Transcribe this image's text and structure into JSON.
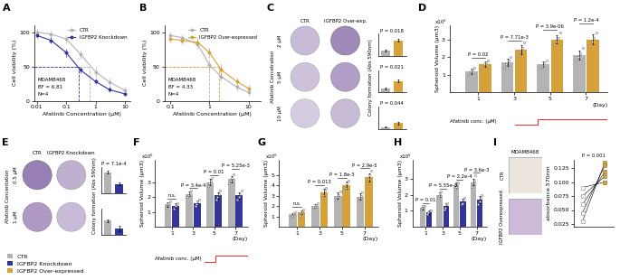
{
  "chart_data": [
    {
      "panel": "A",
      "type": "line",
      "log": "x",
      "xlabel": "Afatinib Concentration (μM)",
      "ylabel": "Cell viability (%)",
      "x": [
        0.01,
        0.03,
        0.1,
        0.3,
        1,
        3,
        10
      ],
      "xlim": [
        0.008,
        15
      ],
      "xticks": [
        0.01,
        0.1,
        1,
        10
      ],
      "ylim": [
        0,
        110
      ],
      "yticks": [
        0,
        50,
        100
      ],
      "reference_y": 50,
      "legend": "upper right",
      "annotations": [
        "MDAMB468",
        "BF = 6.81",
        "N=4"
      ],
      "series": [
        {
          "name": "CTR",
          "color": "#b3b3b3",
          "values": [
            100,
            97,
            90,
            68,
            42,
            27,
            15
          ],
          "errors": [
            6,
            5,
            6,
            7,
            8,
            6,
            5
          ],
          "ic50": 0.6
        },
        {
          "name": "IGFBP2 Knockdown",
          "color": "#34359b",
          "values": [
            95,
            88,
            70,
            45,
            28,
            16,
            10
          ],
          "errors": [
            4,
            5,
            6,
            5,
            4,
            4,
            3
          ],
          "ic50": 0.27
        }
      ]
    },
    {
      "panel": "B",
      "type": "line",
      "log": "x",
      "xlabel": "Afatinib Concentration (μM)",
      "ylabel": "Cell viability (%)",
      "x": [
        0.1,
        0.2,
        0.5,
        1,
        2,
        5,
        10
      ],
      "xlim": [
        0.07,
        20
      ],
      "xticks": [
        0.1,
        1,
        10
      ],
      "ylim": [
        0,
        110
      ],
      "yticks": [
        0,
        50,
        100
      ],
      "reference_y": 50,
      "legend": "upper right",
      "annotations": [
        "MDAMB468",
        "BF = 4.33",
        "N=4"
      ],
      "series": [
        {
          "name": "CTR",
          "color": "#b3b3b3",
          "values": [
            95,
            92,
            82,
            52,
            35,
            20,
            12
          ],
          "errors": [
            5,
            5,
            6,
            8,
            7,
            6,
            5
          ],
          "ic50": 1.0
        },
        {
          "name": "IGFBP2 Over-expressed",
          "color": "#d4a13b",
          "values": [
            90,
            88,
            85,
            70,
            45,
            28,
            18
          ],
          "errors": [
            5,
            6,
            6,
            7,
            8,
            6,
            5
          ],
          "ic50": 1.8
        }
      ]
    },
    {
      "panel": "C",
      "type": "colony",
      "column_labels": [
        "CTR",
        "IGFBP2 Over-exp."
      ],
      "row_title": "Afatinib Concetration",
      "ylabel": "Colony formation (Abs 590nm)",
      "colors": [
        "#b3b3b3",
        "#d4a13b"
      ],
      "ylim": [
        0,
        1.2
      ],
      "tick_labels": false,
      "rows": [
        {
          "label": "2 μM",
          "values": [
            0.3,
            0.85
          ],
          "errors": [
            0.04,
            0.08
          ],
          "p_value": "P = 0.018"
        },
        {
          "label": "5 μM",
          "values": [
            0.22,
            0.62
          ],
          "errors": [
            0.04,
            0.08
          ],
          "p_value": "P = 0.021"
        },
        {
          "label": "10 μM",
          "values": [
            0.1,
            0.3
          ],
          "errors": [
            0.03,
            0.06
          ],
          "p_value": "P = 0.044"
        }
      ]
    },
    {
      "panel": "D",
      "type": "bar",
      "categories": [
        "1",
        "3",
        "5",
        "7"
      ],
      "xlabel": "(Day)",
      "ylabel": "Spheroid Volume (μm3)",
      "y_unit_label": "x10⁶",
      "ylim": [
        0,
        3.8
      ],
      "yticks": [
        1,
        2,
        3
      ],
      "schedule_label": "Afatinib conc. (μM)",
      "p_values": [
        "P = 0.02",
        "P = 7.71e-3",
        "P = 3.9e-06",
        "P = 1.2e-4"
      ],
      "series": [
        {
          "name": "CTR",
          "color": "#b3b3b3",
          "values": [
            1.2,
            1.7,
            1.6,
            2.1
          ],
          "errors": [
            0.15,
            0.2,
            0.15,
            0.25
          ],
          "points": [
            [
              1.0,
              1.2,
              1.3,
              1.4
            ],
            [
              1.4,
              1.6,
              1.8,
              2.0
            ],
            [
              1.4,
              1.5,
              1.7,
              1.8
            ],
            [
              1.8,
              2.0,
              2.2,
              2.5
            ]
          ]
        },
        {
          "name": "IGFBP2 Over-expressed",
          "color": "#d4a13b",
          "values": [
            1.6,
            2.4,
            3.0,
            3.0
          ],
          "errors": [
            0.15,
            0.25,
            0.25,
            0.3
          ],
          "points": [
            [
              1.4,
              1.6,
              1.7,
              1.8
            ],
            [
              2.1,
              2.3,
              2.5,
              2.8
            ],
            [
              2.7,
              2.9,
              3.1,
              3.4
            ],
            [
              2.6,
              2.9,
              3.1,
              3.4
            ]
          ]
        }
      ]
    },
    {
      "panel": "E",
      "type": "colony",
      "column_labels": [
        "CTR",
        "IGFBP2 Knockdown"
      ],
      "row_title": "Afatinib Concentation",
      "ylabel": "Colony formation (Abs 590nm)",
      "colors": [
        "#b3b3b3",
        "#34359b"
      ],
      "ylim": [
        0,
        1.0
      ],
      "tick_labels": false,
      "rows": [
        {
          "label": "0.5 μM",
          "values": [
            0.8,
            0.35
          ],
          "errors": [
            0.05,
            0.05
          ],
          "p_value": "P = 7.1e-4"
        },
        {
          "label": "1 μM",
          "values": [
            0.55,
            0.25
          ],
          "errors": [
            0.06,
            0.1
          ]
        }
      ]
    },
    {
      "panel": "F",
      "type": "bar",
      "categories": [
        "1",
        "3",
        "5",
        "7"
      ],
      "xlabel": "(Day)",
      "ylabel": "Spheroid Volume (μm3)",
      "y_unit_label": "x10⁶",
      "ylim": [
        0,
        4.5
      ],
      "yticks": [
        1,
        2,
        3
      ],
      "schedule_label": "Afatinib conc. (μM)",
      "p_values": [
        "n.s.",
        "P = 3.4e-4",
        "P = 0.01",
        "P = 5.25e-3"
      ],
      "series": [
        {
          "name": "CTR",
          "color": "#b3b3b3",
          "values": [
            1.5,
            2.2,
            3.0,
            3.2
          ],
          "errors": [
            0.15,
            0.15,
            0.2,
            0.2
          ],
          "points": [
            [
              1.3,
              1.5,
              1.6,
              1.7
            ],
            [
              2.0,
              2.1,
              2.3,
              2.4
            ],
            [
              2.7,
              2.9,
              3.1,
              3.3
            ],
            [
              2.9,
              3.1,
              3.3,
              3.5
            ]
          ]
        },
        {
          "name": "IGFBP2 Knockdown",
          "color": "#34359b",
          "values": [
            1.4,
            1.6,
            2.1,
            2.1
          ],
          "errors": [
            0.15,
            0.15,
            0.2,
            0.2
          ],
          "points": [
            [
              1.2,
              1.4,
              1.5,
              1.6
            ],
            [
              1.4,
              1.5,
              1.7,
              1.8
            ],
            [
              1.8,
              2.0,
              2.2,
              2.4
            ],
            [
              1.8,
              2.0,
              2.2,
              2.4
            ]
          ]
        }
      ]
    },
    {
      "panel": "G",
      "type": "bar",
      "categories": [
        "1",
        "3",
        "5",
        "7"
      ],
      "xlabel": "(Day)",
      "ylabel": "Spheroid Volume (μm3)",
      "y_unit_label": "x10⁶",
      "ylim": [
        0,
        6.5
      ],
      "yticks": [
        1,
        2,
        3,
        4,
        5
      ],
      "p_values": [
        "n.s.",
        "P = 0.013",
        "P = 1.8e-3",
        "P = 2.9e-5"
      ],
      "series": [
        {
          "name": "CTR",
          "color": "#b3b3b3",
          "values": [
            1.2,
            2.0,
            3.0,
            2.9
          ],
          "errors": [
            0.15,
            0.2,
            0.3,
            0.3
          ],
          "points": [
            [
              1.0,
              1.1,
              1.3,
              1.4
            ],
            [
              1.7,
              1.9,
              2.1,
              2.3
            ],
            [
              2.6,
              2.9,
              3.1,
              3.4
            ],
            [
              2.5,
              2.8,
              3.0,
              3.3
            ]
          ]
        },
        {
          "name": "IGFBP2 Over-expressed",
          "color": "#d4a13b",
          "values": [
            1.4,
            3.3,
            4.0,
            4.8
          ],
          "errors": [
            0.2,
            0.35,
            0.35,
            0.4
          ],
          "points": [
            [
              1.1,
              1.3,
              1.5,
              1.7
            ],
            [
              2.8,
              3.1,
              3.5,
              3.8
            ],
            [
              3.5,
              3.8,
              4.2,
              4.5
            ],
            [
              4.2,
              4.6,
              5.0,
              5.4
            ]
          ]
        }
      ]
    },
    {
      "panel": "H",
      "type": "bar",
      "categories": [
        "1",
        "3",
        "5",
        "7"
      ],
      "xlabel": "(Day)",
      "ylabel": "Spheroid Volume (μm3)",
      "y_unit_label": "x10⁶",
      "ylim": [
        0,
        4.2
      ],
      "yticks": [
        1,
        2,
        3
      ],
      "p_values": [
        "P = 0.01",
        "P = 5.55e-3",
        "P = 2.2e-4",
        "P = 3.6e-3"
      ],
      "series": [
        {
          "name": "CTR",
          "color": "#b3b3b3",
          "values": [
            1.2,
            2.0,
            2.6,
            2.8
          ],
          "errors": [
            0.1,
            0.15,
            0.15,
            0.2
          ],
          "points": [
            [
              1.1,
              1.2,
              1.3,
              1.3
            ],
            [
              1.8,
              1.9,
              2.1,
              2.2
            ],
            [
              2.4,
              2.5,
              2.7,
              2.8
            ],
            [
              2.5,
              2.7,
              2.9,
              3.2
            ]
          ]
        },
        {
          "name": "IGFBP2 Knockdown",
          "color": "#34359b",
          "values": [
            0.9,
            1.3,
            1.6,
            1.7
          ],
          "errors": [
            0.1,
            0.15,
            0.15,
            0.2
          ],
          "points": [
            [
              0.8,
              0.9,
              1.0,
              1.0
            ],
            [
              1.1,
              1.2,
              1.4,
              1.5
            ],
            [
              1.4,
              1.5,
              1.7,
              1.8
            ],
            [
              1.4,
              1.6,
              1.8,
              2.0
            ]
          ]
        }
      ]
    },
    {
      "panel": "I",
      "type": "paired_line",
      "title": "MDAMB468",
      "ylabel": "absorbance 570nm",
      "p_value": "P = 0.001",
      "tick_labels": "y",
      "ylim": [
        0.02,
        0.14
      ],
      "yticks": [
        0.025,
        {
          "value": 0.05,
          "label": "0.050"
        },
        0.075,
        {
          "value": 0.1,
          "label": "0.100"
        },
        0.125
      ],
      "series": [
        {
          "name": "CTR",
          "color": "#9a9a9a",
          "values": [
            0.03,
            0.045,
            0.06,
            0.075,
            0.09
          ]
        },
        {
          "name": "IGFBP2 Overexpressed",
          "color": "#d4a13b",
          "values": [
            0.135,
            0.13,
            0.118,
            0.11,
            0.1
          ]
        }
      ]
    }
  ],
  "legend": "lower left",
  "legend_entries": [
    {
      "name": "CTR",
      "color": "#b3b3b3"
    },
    {
      "name": "IGFBP2 Knockdown",
      "color": "#34359b"
    },
    {
      "name": "IGFBP2 Over-expressed",
      "color": "#d4a13b"
    }
  ]
}
